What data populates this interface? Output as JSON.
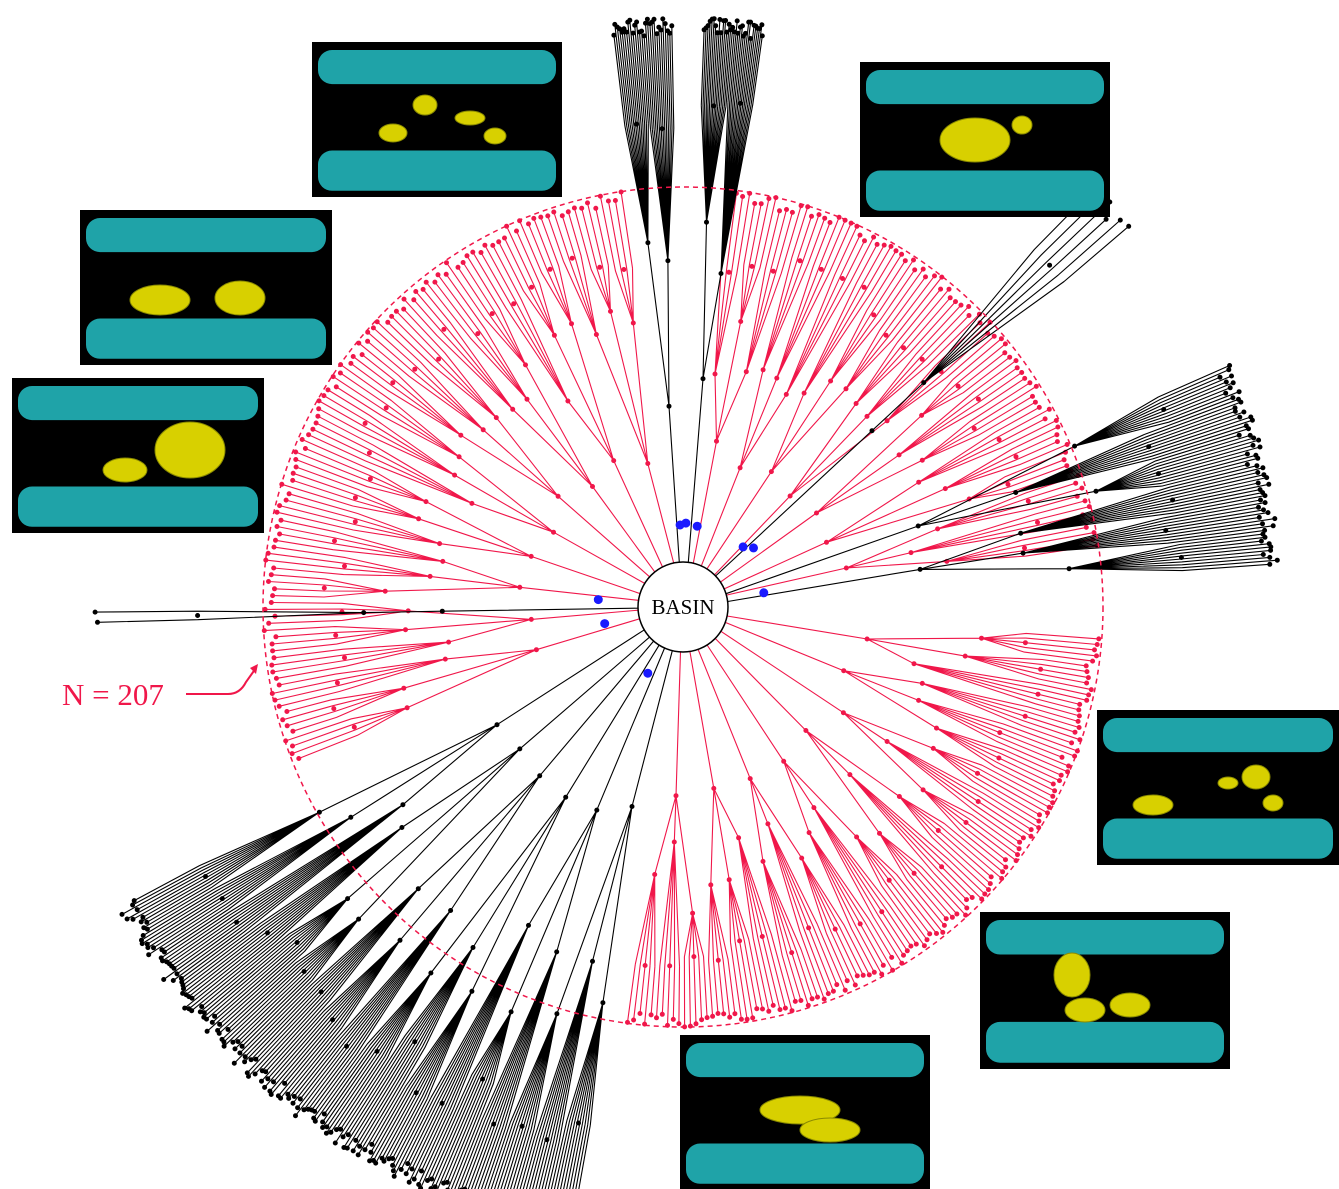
{
  "center_label": "BASIN",
  "annotation": "N = 207"
}
